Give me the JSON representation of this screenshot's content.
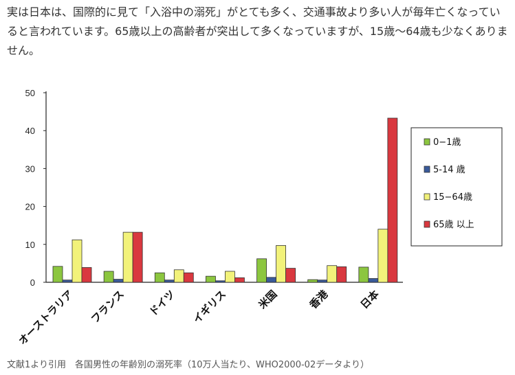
{
  "article": {
    "intro": "実は日本は、国際的に見て「入浴中の溺死」がとても多く、交通事故より多い人が毎年亡くなっていると言われています。65歳以上の高齢者が突出して多くなっていますが、15歳〜64歳も少なくありません。",
    "caption": "文献1より引用　各国男性の年齢別の溺死率（10万人当たり、WHO2000-02データより）"
  },
  "chart_data": {
    "type": "bar",
    "categories": [
      "オーストラリア",
      "フランス",
      "ドイツ",
      "イギリス",
      "米国",
      "香港",
      "日本"
    ],
    "series": [
      {
        "name": "0−1歳",
        "color": "#8cc63f",
        "values": [
          4.2,
          2.9,
          2.5,
          1.6,
          6.2,
          0.7,
          4.0
        ]
      },
      {
        "name": "5-14 歳",
        "color": "#3a5a9a",
        "values": [
          0.6,
          0.8,
          0.6,
          0.4,
          1.3,
          0.6,
          1.0
        ]
      },
      {
        "name": "15−64歳",
        "color": "#f2f27a",
        "values": [
          11.2,
          13.2,
          3.3,
          2.9,
          9.7,
          4.4,
          14.0
        ]
      },
      {
        "name": "65歳 以上",
        "color": "#d9383f",
        "values": [
          3.9,
          13.2,
          2.5,
          1.2,
          3.7,
          4.1,
          43.3
        ]
      }
    ],
    "ylim": [
      0,
      50
    ],
    "yticks": [
      "0",
      "10",
      "20",
      "30",
      "40",
      "50"
    ],
    "legend": "right",
    "grid": false
  }
}
